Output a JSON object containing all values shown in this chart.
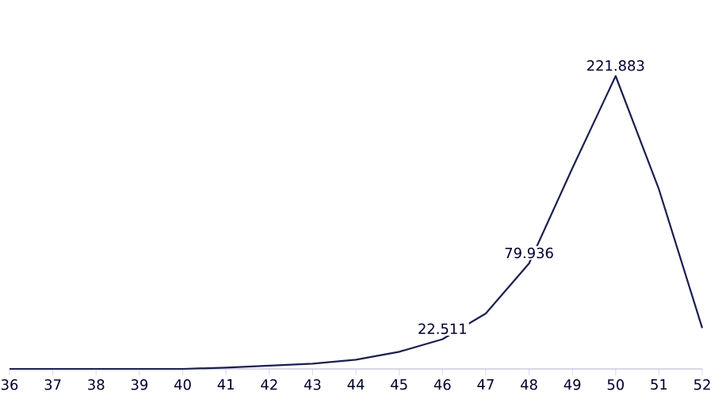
{
  "chart_data": {
    "type": "line",
    "x": [
      36,
      37,
      38,
      39,
      40,
      41,
      42,
      43,
      44,
      45,
      46,
      47,
      48,
      49,
      50,
      51,
      52
    ],
    "series": [
      {
        "color": "#1b1f4f",
        "values": [
          0,
          0,
          0,
          0,
          0,
          1,
          2.5,
          4,
          7,
          13,
          22.511,
          42,
          79.936,
          152,
          221.883,
          136,
          31
        ],
        "value_labels": [
          null,
          null,
          null,
          null,
          null,
          null,
          null,
          null,
          null,
          null,
          "22.511",
          null,
          "79.936",
          null,
          "221.883",
          null,
          null
        ]
      }
    ],
    "xlim": [
      36,
      52
    ],
    "xticks": [
      36,
      37,
      38,
      39,
      40,
      41,
      42,
      43,
      44,
      45,
      46,
      47,
      48,
      49,
      50,
      51,
      52
    ],
    "tick_labels": "x",
    "grid": false,
    "marker": "none",
    "line_style": "solid"
  }
}
